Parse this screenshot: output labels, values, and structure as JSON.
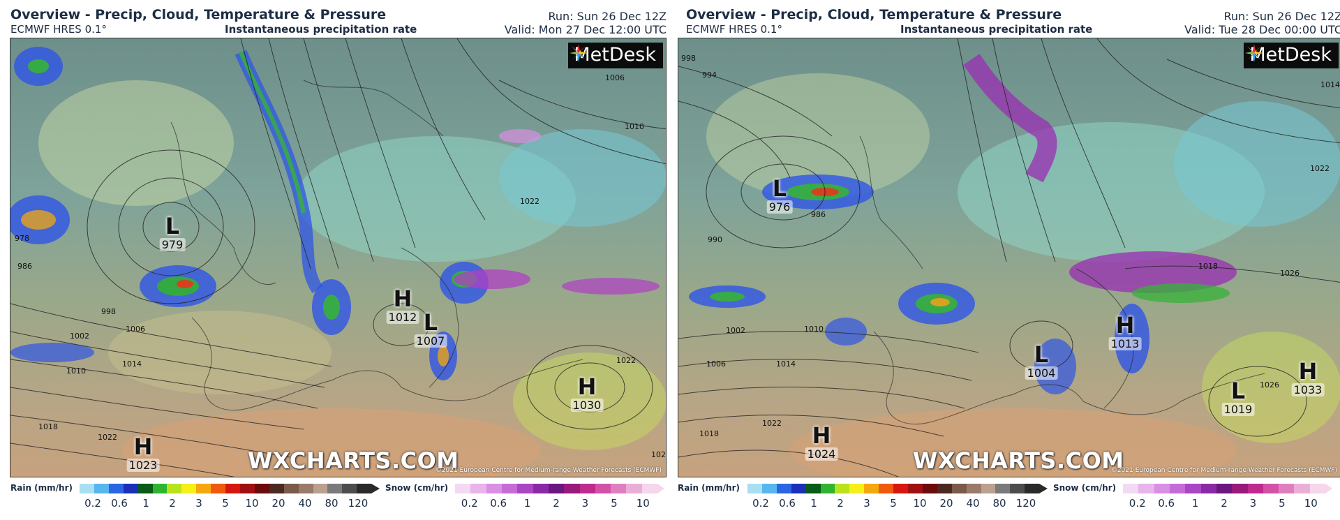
{
  "panels": [
    {
      "title": "Overview - Precip, Cloud, Temperature & Pressure",
      "model": "ECMWF HRES 0.1°",
      "product": "Instantaneous precipitation rate",
      "run": "Run: Sun 26 Dec 12Z",
      "valid": "Valid: Mon 27 Dec 12:00 UTC",
      "logo": "MetDesk",
      "watermark": "WXCHARTS.COM",
      "copyright": "©2021 European Centre for Medium-range Weather Forecasts (ECMWF)",
      "pressure_centers": [
        {
          "type": "L",
          "value": "979"
        },
        {
          "type": "H",
          "value": "1012"
        },
        {
          "type": "L",
          "value": "1007"
        },
        {
          "type": "H",
          "value": "1030"
        },
        {
          "type": "H",
          "value": "1023"
        }
      ],
      "isobar_labels": [
        "978",
        "986",
        "998",
        "1002",
        "1006",
        "1010",
        "1014",
        "1018",
        "1022",
        "1010",
        "1022",
        "1022",
        "1022",
        "1002",
        "1006"
      ]
    },
    {
      "title": "Overview - Precip, Cloud, Temperature & Pressure",
      "model": "ECMWF HRES 0.1°",
      "product": "Instantaneous precipitation rate",
      "run": "Run: Sun 26 Dec 12Z",
      "valid": "Valid: Tue 28 Dec 00:00 UTC",
      "logo": "MetDesk",
      "watermark": "WXCHARTS.COM",
      "copyright": "©2021 European Centre for Medium-range Weather Forecasts (ECMWF)",
      "pressure_centers": [
        {
          "type": "L",
          "value": "976"
        },
        {
          "type": "H",
          "value": "1013"
        },
        {
          "type": "L",
          "value": "1004"
        },
        {
          "type": "H",
          "value": "1033"
        },
        {
          "type": "L",
          "value": "1019"
        },
        {
          "type": "H",
          "value": "1024"
        }
      ],
      "isobar_labels": [
        "998",
        "994",
        "990",
        "986",
        "1002",
        "1006",
        "1010",
        "1014",
        "1018",
        "1022",
        "1014",
        "1022",
        "1018",
        "1026",
        "1026"
      ]
    }
  ],
  "legends": {
    "rain": {
      "title": "Rain (mm/hr)",
      "ticks": [
        "0.2",
        "0.6",
        "1",
        "2",
        "3",
        "5",
        "10",
        "20",
        "40",
        "80",
        "120"
      ],
      "colors": [
        "#a8dff2",
        "#57b6ee",
        "#2a66e3",
        "#1b2fb8",
        "#0a5b1a",
        "#2fb431",
        "#b9e21d",
        "#f7ef18",
        "#f5a80e",
        "#ef5a0f",
        "#d6170f",
        "#a00f12",
        "#6b0b0b",
        "#4a2a20",
        "#7b5a4a",
        "#9a7a6a",
        "#bba090",
        "#7a7a7a",
        "#4d4d4d",
        "#2a2a2a"
      ]
    },
    "snow": {
      "title": "Snow (cm/hr)",
      "ticks": [
        "0.2",
        "0.6",
        "1",
        "2",
        "3",
        "5",
        "10"
      ],
      "colors": [
        "#f3d9f3",
        "#e7b4ec",
        "#d98fe3",
        "#c56bd6",
        "#aa45c4",
        "#8b2aa6",
        "#6b1780",
        "#981a7a",
        "#c02a8f",
        "#d451a8",
        "#e07fc0",
        "#ebaed7",
        "#f5d6eb"
      ]
    }
  }
}
